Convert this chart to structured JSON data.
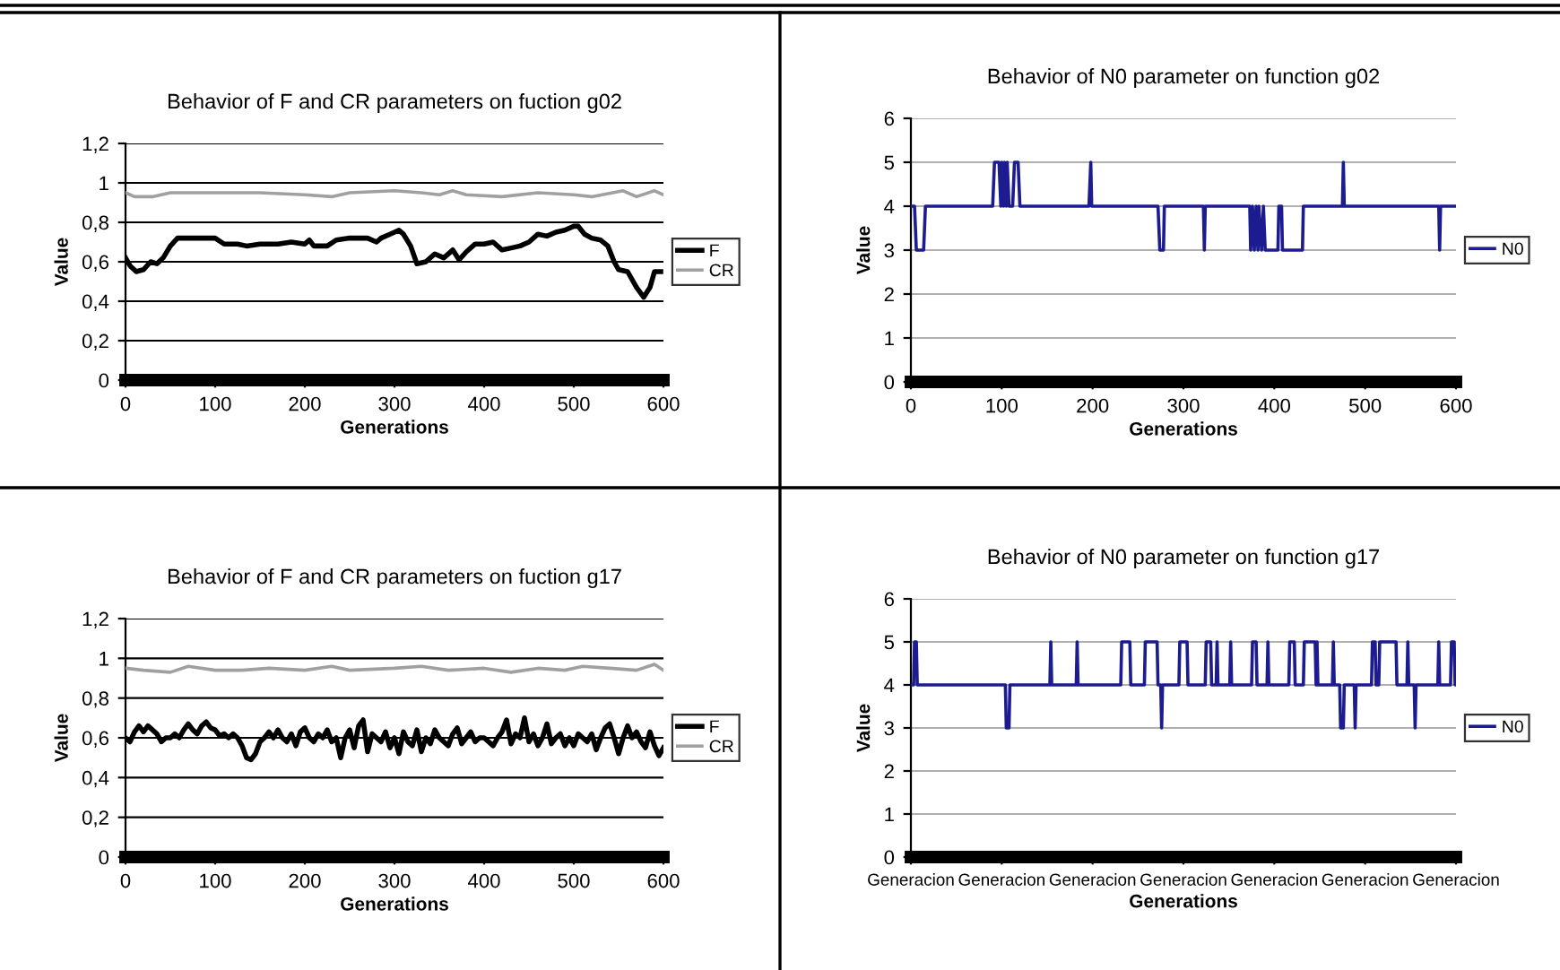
{
  "chart_data": [
    {
      "type": "line",
      "title": "Behavior of F and CR parameters on fuction g02",
      "xlabel": "Generations",
      "ylabel": "Value",
      "xlim": [
        0,
        600
      ],
      "xticks": [
        0,
        100,
        200,
        300,
        400,
        500,
        600
      ],
      "ylim": [
        0,
        1.2
      ],
      "yticks": [
        0,
        {
          "value": 0.2,
          "label": "0,2"
        },
        {
          "value": 0.4,
          "label": "0,4"
        },
        {
          "value": 0.6,
          "label": "0,6"
        },
        {
          "value": 0.8,
          "label": "0,8"
        },
        1,
        {
          "value": 1.2,
          "label": "1,2"
        }
      ],
      "grid": "y",
      "legend": "right",
      "series": [
        {
          "name": "F",
          "color": "#000000",
          "x": [
            0,
            5,
            12,
            20,
            28,
            35,
            42,
            50,
            58,
            70,
            85,
            100,
            110,
            125,
            135,
            150,
            170,
            185,
            200,
            205,
            210,
            225,
            235,
            250,
            270,
            280,
            285,
            295,
            305,
            310,
            318,
            325,
            335,
            345,
            355,
            365,
            372,
            380,
            390,
            400,
            410,
            420,
            430,
            440,
            450,
            460,
            470,
            480,
            490,
            500,
            505,
            512,
            520,
            530,
            538,
            545,
            550,
            560,
            570,
            578,
            585,
            590,
            597
          ],
          "values": [
            0.62,
            0.58,
            0.55,
            0.56,
            0.6,
            0.59,
            0.62,
            0.68,
            0.72,
            0.72,
            0.72,
            0.72,
            0.69,
            0.69,
            0.68,
            0.69,
            0.69,
            0.7,
            0.69,
            0.71,
            0.68,
            0.68,
            0.71,
            0.72,
            0.72,
            0.7,
            0.72,
            0.74,
            0.76,
            0.74,
            0.68,
            0.59,
            0.6,
            0.64,
            0.62,
            0.66,
            0.61,
            0.65,
            0.69,
            0.69,
            0.7,
            0.66,
            0.67,
            0.68,
            0.7,
            0.74,
            0.73,
            0.75,
            0.76,
            0.78,
            0.78,
            0.74,
            0.72,
            0.71,
            0.68,
            0.6,
            0.56,
            0.55,
            0.47,
            0.42,
            0.47,
            0.55,
            0.55
          ]
        },
        {
          "name": "CR",
          "color": "#a0a0a0",
          "x": [
            0,
            10,
            30,
            50,
            100,
            150,
            200,
            230,
            250,
            300,
            330,
            350,
            365,
            380,
            420,
            460,
            500,
            520,
            555,
            570,
            590,
            600
          ],
          "values": [
            0.95,
            0.93,
            0.93,
            0.95,
            0.95,
            0.95,
            0.94,
            0.93,
            0.95,
            0.96,
            0.95,
            0.94,
            0.96,
            0.94,
            0.93,
            0.95,
            0.94,
            0.93,
            0.96,
            0.93,
            0.96,
            0.94
          ]
        }
      ]
    },
    {
      "type": "line",
      "title": "Behavior of N0 parameter on function g02",
      "xlabel": "Generations",
      "ylabel": "Value",
      "xlim": [
        0,
        600
      ],
      "xticks": [
        0,
        100,
        200,
        300,
        400,
        500,
        600
      ],
      "ylim": [
        0,
        6
      ],
      "yticks": [
        0,
        1,
        2,
        3,
        4,
        5,
        6
      ],
      "grid": "y",
      "legend": "right",
      "series": [
        {
          "name": "N0",
          "color": "#1c1c90",
          "x": [
            0,
            4,
            6,
            14,
            16,
            90,
            92,
            97,
            99,
            100,
            102,
            103,
            105,
            106,
            108,
            112,
            114,
            118,
            120,
            196,
            198,
            199,
            272,
            274,
            278,
            279,
            322,
            323,
            324,
            373,
            374,
            376,
            378,
            380,
            382,
            383,
            386,
            388,
            390,
            404,
            405,
            408,
            409,
            431,
            432,
            475,
            476,
            477,
            581,
            582,
            583,
            600
          ],
          "values": [
            4,
            4,
            3,
            3,
            4,
            4,
            5,
            5,
            4,
            5,
            4,
            5,
            4,
            5,
            4,
            4,
            5,
            5,
            4,
            4,
            5,
            4,
            4,
            3,
            3,
            4,
            4,
            3,
            4,
            4,
            3,
            4,
            3,
            4,
            3,
            4,
            3,
            4,
            3,
            3,
            4,
            4,
            3,
            3,
            4,
            4,
            5,
            4,
            4,
            3,
            4,
            4
          ]
        }
      ]
    },
    {
      "type": "line",
      "title": "Behavior of F and CR parameters on fuction g17",
      "xlabel": "Generations",
      "ylabel": "Value",
      "xlim": [
        0,
        600
      ],
      "xticks": [
        0,
        100,
        200,
        300,
        400,
        500,
        600
      ],
      "ylim": [
        0,
        1.2
      ],
      "yticks": [
        0,
        {
          "value": 0.2,
          "label": "0,2"
        },
        {
          "value": 0.4,
          "label": "0,4"
        },
        {
          "value": 0.6,
          "label": "0,6"
        },
        {
          "value": 0.8,
          "label": "0,8"
        },
        1,
        {
          "value": 1.2,
          "label": "1,2"
        }
      ],
      "grid": "y",
      "legend": "right",
      "series": [
        {
          "name": "F",
          "color": "#000000",
          "x": [
            0,
            5,
            10,
            15,
            20,
            25,
            30,
            35,
            40,
            45,
            50,
            55,
            60,
            65,
            70,
            75,
            80,
            85,
            90,
            95,
            100,
            105,
            110,
            115,
            120,
            125,
            130,
            135,
            140,
            145,
            150,
            155,
            160,
            165,
            170,
            175,
            180,
            185,
            190,
            195,
            200,
            205,
            210,
            215,
            220,
            225,
            230,
            235,
            240,
            245,
            250,
            255,
            260,
            265,
            270,
            275,
            280,
            285,
            290,
            295,
            300,
            305,
            310,
            315,
            320,
            325,
            330,
            335,
            340,
            345,
            350,
            355,
            360,
            365,
            370,
            375,
            380,
            385,
            390,
            395,
            400,
            405,
            410,
            415,
            420,
            425,
            430,
            435,
            440,
            445,
            450,
            455,
            460,
            465,
            470,
            475,
            480,
            485,
            490,
            495,
            500,
            505,
            510,
            515,
            520,
            525,
            530,
            535,
            540,
            545,
            550,
            555,
            560,
            565,
            570,
            575,
            580,
            585,
            590,
            595,
            600
          ],
          "values": [
            0.6,
            0.58,
            0.63,
            0.66,
            0.63,
            0.66,
            0.64,
            0.62,
            0.58,
            0.6,
            0.6,
            0.62,
            0.6,
            0.64,
            0.67,
            0.64,
            0.62,
            0.66,
            0.68,
            0.65,
            0.64,
            0.61,
            0.62,
            0.6,
            0.62,
            0.6,
            0.56,
            0.5,
            0.49,
            0.52,
            0.58,
            0.6,
            0.63,
            0.6,
            0.64,
            0.6,
            0.58,
            0.62,
            0.56,
            0.63,
            0.65,
            0.6,
            0.58,
            0.62,
            0.6,
            0.64,
            0.58,
            0.6,
            0.5,
            0.6,
            0.64,
            0.55,
            0.66,
            0.69,
            0.53,
            0.62,
            0.6,
            0.58,
            0.63,
            0.55,
            0.6,
            0.52,
            0.63,
            0.58,
            0.56,
            0.64,
            0.53,
            0.6,
            0.57,
            0.64,
            0.6,
            0.58,
            0.56,
            0.62,
            0.65,
            0.57,
            0.6,
            0.63,
            0.58,
            0.6,
            0.6,
            0.58,
            0.56,
            0.6,
            0.63,
            0.69,
            0.57,
            0.62,
            0.6,
            0.7,
            0.58,
            0.62,
            0.56,
            0.6,
            0.67,
            0.57,
            0.6,
            0.62,
            0.56,
            0.6,
            0.56,
            0.62,
            0.6,
            0.58,
            0.62,
            0.54,
            0.6,
            0.65,
            0.67,
            0.6,
            0.52,
            0.6,
            0.66,
            0.6,
            0.63,
            0.58,
            0.55,
            0.63,
            0.56,
            0.51,
            0.55
          ]
        },
        {
          "name": "CR",
          "color": "#a0a0a0",
          "x": [
            0,
            20,
            50,
            70,
            100,
            130,
            160,
            200,
            230,
            250,
            300,
            330,
            360,
            400,
            430,
            460,
            490,
            510,
            540,
            570,
            590,
            600
          ],
          "values": [
            0.95,
            0.94,
            0.93,
            0.96,
            0.94,
            0.94,
            0.95,
            0.94,
            0.96,
            0.94,
            0.95,
            0.96,
            0.94,
            0.95,
            0.93,
            0.95,
            0.94,
            0.96,
            0.95,
            0.94,
            0.97,
            0.94
          ]
        }
      ]
    },
    {
      "type": "line",
      "title": "Behavior of N0 parameter on function g17",
      "xlabel": "Generations",
      "ylabel": "Value",
      "ylim": [
        0,
        6
      ],
      "yticks": [
        0,
        1,
        2,
        3,
        4,
        5,
        6
      ],
      "grid": "y",
      "legend": "right",
      "categories": [
        "Generacion",
        null,
        null,
        null,
        null,
        null,
        null,
        null,
        null,
        null,
        null,
        null,
        null,
        null,
        null,
        null,
        null,
        null,
        null,
        null,
        null,
        null,
        null,
        null,
        null,
        null,
        null,
        null,
        null,
        null,
        null,
        null,
        null,
        null,
        null,
        null,
        null,
        null,
        null,
        null,
        null,
        null,
        null,
        null,
        null,
        null,
        null,
        null,
        null,
        null,
        null,
        null,
        null,
        null,
        null,
        null,
        null,
        null,
        null,
        null,
        null,
        null,
        null,
        null,
        null,
        null,
        null,
        null,
        null,
        null,
        null,
        null,
        null,
        null,
        null,
        null,
        null,
        null,
        null,
        null,
        null,
        null,
        null,
        null,
        null,
        null,
        null,
        null,
        null,
        null,
        null,
        null,
        null,
        null,
        null,
        null,
        null,
        null,
        null,
        null,
        "Generacion",
        null,
        null,
        null,
        null,
        null,
        null,
        null,
        null,
        null,
        null,
        null,
        null,
        null,
        null,
        null,
        null,
        null,
        null,
        null,
        null,
        null,
        null,
        null,
        null,
        null,
        null,
        null,
        null,
        null,
        null,
        null,
        null,
        null,
        null,
        null,
        null,
        null,
        null,
        null,
        null,
        null,
        null,
        null,
        null,
        null,
        null,
        null,
        null,
        null,
        null,
        null,
        null,
        null,
        null,
        null,
        null,
        null,
        null,
        null,
        null,
        null,
        null,
        null,
        null,
        null,
        null,
        null,
        null,
        null,
        null,
        null,
        null,
        null,
        null,
        null,
        null,
        null,
        null,
        null,
        null,
        null,
        null,
        null,
        null,
        null,
        null,
        null,
        null,
        null,
        null,
        null,
        null,
        null,
        null,
        null,
        null,
        null,
        null,
        null,
        "Generacion",
        null,
        null,
        null,
        null,
        null,
        null,
        null,
        null,
        null,
        null,
        null,
        null,
        null,
        null,
        null,
        null,
        null,
        null,
        null,
        null,
        null,
        null,
        null,
        null,
        null,
        null,
        null,
        null,
        null,
        null,
        null,
        null,
        null,
        null,
        null,
        null,
        null,
        null,
        null,
        null,
        null,
        null,
        null,
        null,
        null,
        null,
        null,
        null,
        null,
        null,
        null,
        null,
        null,
        null,
        null,
        null,
        null,
        null,
        null,
        null,
        null,
        null,
        null,
        null,
        null,
        null,
        null,
        null,
        null,
        null,
        null,
        null,
        null,
        null,
        null,
        null,
        null,
        null,
        null,
        null,
        null,
        null,
        null,
        null,
        null,
        null,
        null,
        null,
        null,
        null,
        null,
        null,
        null,
        null,
        null,
        null,
        null,
        null,
        null,
        "Generacion",
        null,
        null,
        null,
        null,
        null,
        null,
        null,
        null,
        null,
        null,
        null,
        null,
        null,
        null,
        null,
        null,
        null,
        null,
        null,
        null,
        null,
        null,
        null,
        null,
        null,
        null,
        null,
        null,
        null,
        null,
        null,
        null,
        null,
        null,
        null,
        null,
        null,
        null,
        null,
        null,
        null,
        null,
        null,
        null,
        null,
        null,
        null,
        null,
        null,
        null,
        null,
        null,
        null,
        null,
        null,
        null,
        null,
        null,
        null,
        null,
        null,
        null,
        null,
        null,
        null,
        null,
        null,
        null,
        null,
        null,
        null,
        null,
        null,
        null,
        null,
        null,
        null,
        null,
        null,
        null,
        null,
        null,
        null,
        null,
        null,
        null,
        null,
        null,
        null,
        null,
        null,
        null,
        null,
        null,
        null,
        null,
        null,
        null,
        null,
        "Generacion",
        null,
        null,
        null,
        null,
        null,
        null,
        null,
        null,
        null,
        null,
        null,
        null,
        null,
        null,
        null,
        null,
        null,
        null,
        null,
        null,
        null,
        null,
        null,
        null,
        null,
        null,
        null,
        null,
        null,
        null,
        null,
        null,
        null,
        null,
        null,
        null,
        null,
        null,
        null,
        null,
        null,
        null,
        null,
        null,
        null,
        null,
        null,
        null,
        null,
        null,
        null,
        null,
        null,
        null,
        null,
        null,
        null,
        null,
        null,
        null,
        null,
        null,
        null,
        null,
        null,
        null,
        null,
        null,
        null,
        null,
        null,
        null,
        null,
        null,
        null,
        null,
        null,
        null,
        null,
        null,
        null,
        null,
        null,
        null,
        null,
        null,
        null,
        null,
        null,
        null,
        null,
        null,
        null,
        null,
        null,
        null,
        null,
        null,
        null,
        "Generacion",
        null,
        null,
        null,
        null,
        null,
        null,
        null,
        null,
        null,
        null,
        null,
        null,
        null,
        null,
        null,
        null,
        null,
        null,
        null,
        null,
        null,
        null,
        null,
        null,
        null,
        null,
        null,
        null,
        null,
        null,
        null,
        null,
        null,
        null,
        null,
        null,
        null,
        null,
        null,
        null,
        null,
        null,
        null,
        null,
        null,
        null,
        null,
        null,
        null,
        null,
        null,
        null,
        null,
        null,
        null,
        null,
        null,
        null,
        null,
        null,
        null,
        null,
        null,
        null,
        null,
        null,
        null,
        null,
        null,
        null,
        null,
        null,
        null,
        null,
        null,
        null,
        null,
        null,
        null,
        null,
        null,
        null,
        null,
        null,
        null,
        null,
        null,
        null,
        null,
        null,
        null,
        null,
        null,
        null,
        null,
        null,
        null,
        null,
        null,
        "Generacion"
      ],
      "series": [
        {
          "name": "N0",
          "color": "#1c1c90",
          "values": [
            4,
            4,
            4,
            4,
            5,
            5,
            5,
            4,
            4,
            4,
            4,
            4,
            4,
            4,
            4,
            4,
            4,
            4,
            4,
            4,
            4,
            4,
            4,
            4,
            4,
            4,
            4,
            4,
            4,
            4,
            4,
            4,
            4,
            4,
            4,
            4,
            4,
            4,
            4,
            4,
            4,
            4,
            4,
            4,
            4,
            4,
            4,
            4,
            4,
            4,
            4,
            4,
            4,
            4,
            4,
            4,
            4,
            4,
            4,
            4,
            4,
            4,
            4,
            4,
            4,
            4,
            4,
            4,
            4,
            4,
            4,
            4,
            4,
            4,
            4,
            4,
            4,
            4,
            4,
            4,
            4,
            4,
            4,
            4,
            4,
            4,
            4,
            4,
            4,
            4,
            4,
            4,
            4,
            4,
            4,
            4,
            4,
            4,
            4,
            4,
            4,
            4,
            4,
            4,
            4,
            3,
            3,
            3,
            3,
            4,
            4,
            4,
            4,
            4,
            4,
            4,
            4,
            4,
            4,
            4,
            4,
            4,
            4,
            4,
            4,
            4,
            4,
            4,
            4,
            4,
            4,
            4,
            4,
            4,
            4,
            4,
            4,
            4,
            4,
            4,
            4,
            4,
            4,
            4,
            4,
            4,
            4,
            4,
            4,
            4,
            4,
            4,
            4,
            4,
            5,
            4,
            4,
            4,
            4,
            4,
            4,
            4,
            4,
            4,
            4,
            4,
            4,
            4,
            4,
            4,
            4,
            4,
            4,
            4,
            4,
            4,
            4,
            4,
            4,
            4,
            4,
            4,
            4,
            5,
            4,
            4,
            4,
            4,
            4,
            4,
            4,
            4,
            4,
            4,
            4,
            4,
            4,
            4,
            4,
            4,
            4,
            4,
            4,
            4,
            4,
            4,
            4,
            4,
            4,
            4,
            4,
            4,
            4,
            4,
            4,
            4,
            4,
            4,
            4,
            4,
            4,
            4,
            4,
            4,
            4,
            4,
            4,
            4,
            4,
            4,
            4,
            4,
            5,
            5,
            5,
            5,
            5,
            5,
            5,
            5,
            5,
            5,
            4,
            4,
            4,
            4,
            4,
            4,
            4,
            4,
            4,
            4,
            4,
            4,
            4,
            4,
            4,
            4,
            5,
            5,
            5,
            5,
            5,
            5,
            5,
            5,
            5,
            5,
            5,
            5,
            5,
            5,
            4,
            4,
            4,
            4,
            3,
            4,
            4,
            4,
            4,
            4,
            4,
            4,
            4,
            4,
            4,
            4,
            4,
            4,
            4,
            4,
            4,
            4,
            4,
            4,
            5,
            5,
            5,
            5,
            5,
            5,
            5,
            5,
            5,
            4,
            4,
            4,
            4,
            4,
            4,
            4,
            4,
            4,
            4,
            4,
            4,
            4,
            4,
            4,
            4,
            4,
            4,
            4,
            4,
            5,
            5,
            5,
            5,
            5,
            5,
            4,
            4,
            4,
            4,
            4,
            4,
            5,
            4,
            4,
            4,
            4,
            4,
            4,
            4,
            4,
            4,
            4,
            4,
            4,
            4,
            4,
            5,
            4,
            4,
            4,
            4,
            4,
            4,
            4,
            4,
            4,
            4,
            4,
            4,
            4,
            4,
            4,
            4,
            4,
            4,
            4,
            4,
            4,
            4,
            4,
            5,
            5,
            5,
            5,
            5,
            4,
            4,
            4,
            4,
            4,
            4,
            4,
            4,
            4,
            4,
            4,
            4,
            5,
            4,
            4,
            4,
            4,
            4,
            4,
            4,
            4,
            4,
            4,
            4,
            4,
            4,
            4,
            4,
            4,
            4,
            4,
            4,
            4,
            4,
            4,
            4,
            5,
            5,
            5,
            5,
            5,
            5,
            4,
            4,
            4,
            4,
            4,
            4,
            4,
            4,
            4,
            4,
            5,
            5,
            5,
            5,
            5,
            5,
            5,
            5,
            5,
            5,
            5,
            5,
            5,
            4,
            5,
            4,
            4,
            4,
            4,
            4,
            4,
            4,
            4,
            4,
            4,
            4,
            4,
            4,
            4,
            4,
            4,
            4,
            5,
            4,
            4,
            4,
            4,
            4,
            4,
            4,
            3,
            3,
            3,
            3,
            4,
            4,
            4,
            4,
            4,
            4,
            4,
            4,
            4,
            4,
            4,
            4,
            3,
            4,
            4,
            4,
            4,
            4,
            4,
            4,
            4,
            4,
            4,
            4,
            4,
            4,
            4,
            4,
            4,
            4,
            4,
            5,
            5,
            5,
            5,
            4,
            4,
            4,
            4,
            5,
            5,
            5,
            5,
            5,
            5,
            5,
            5,
            5,
            5,
            5,
            5,
            5,
            5,
            5,
            5,
            5,
            5,
            5,
            4,
            4,
            4,
            4,
            4,
            4,
            4,
            4,
            4,
            4,
            4,
            4,
            5,
            4,
            4,
            4,
            4,
            4,
            4,
            4,
            3,
            4,
            4,
            4,
            4,
            4,
            4,
            4,
            4,
            4,
            4,
            4,
            4,
            4,
            4,
            4,
            4,
            4,
            4,
            4,
            4,
            4,
            4,
            4,
            4,
            4,
            5,
            4,
            4,
            4,
            4,
            4,
            4,
            4,
            4,
            4,
            4,
            4,
            4,
            4,
            5,
            5,
            5,
            5,
            4,
            4
          ]
        }
      ]
    }
  ]
}
